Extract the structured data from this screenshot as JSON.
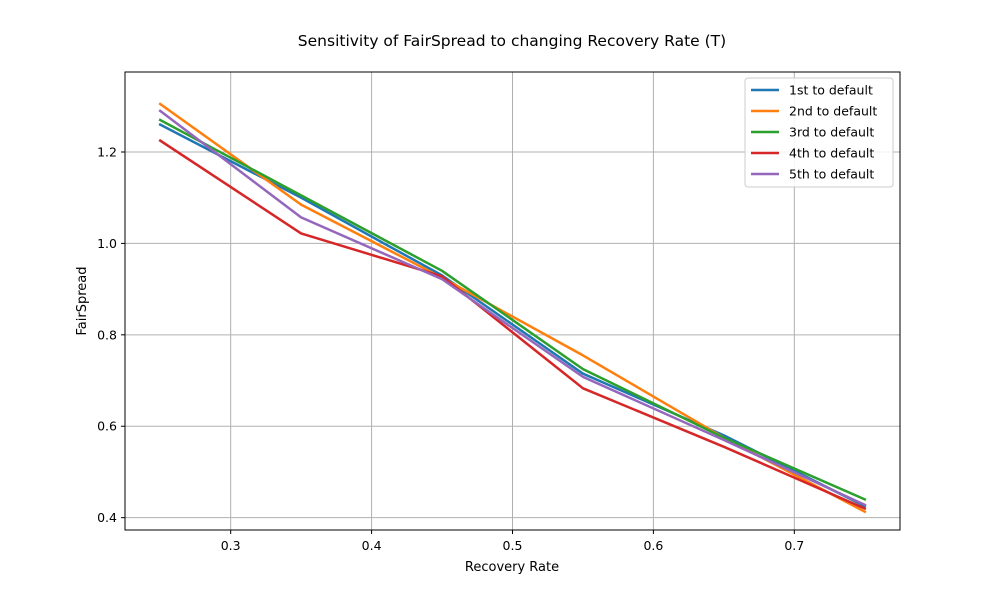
{
  "chart_data": {
    "type": "line",
    "title": "Sensitivity of FairSpread to changing Recovery Rate (T)",
    "xlabel": "Recovery Rate",
    "ylabel": "FairSpread",
    "xlim": [
      0.225,
      0.775
    ],
    "ylim": [
      0.373,
      1.375
    ],
    "xticks": [
      0.3,
      0.4,
      0.5,
      0.6,
      0.7
    ],
    "xtick_labels": [
      "0.3",
      "0.4",
      "0.5",
      "0.6",
      "0.7"
    ],
    "yticks": [
      0.4,
      0.6,
      0.8,
      1.0,
      1.2
    ],
    "ytick_labels": [
      "0.4",
      "0.6",
      "0.8",
      "1.0",
      "1.2"
    ],
    "grid": true,
    "legend_position": "top-right",
    "x": [
      0.25,
      0.35,
      0.45,
      0.55,
      0.65,
      0.75
    ],
    "series": [
      {
        "name": "1st to default",
        "color": "#1f77b4",
        "values": [
          1.26,
          1.1,
          0.93,
          0.715,
          0.58,
          0.425
        ]
      },
      {
        "name": "2nd to default",
        "color": "#ff7f0e",
        "values": [
          1.305,
          1.085,
          0.925,
          0.755,
          0.575,
          0.413
        ]
      },
      {
        "name": "3rd to default",
        "color": "#2ca02c",
        "values": [
          1.27,
          1.105,
          0.94,
          0.725,
          0.575,
          0.44
        ]
      },
      {
        "name": "4th to default",
        "color": "#d62728",
        "values": [
          1.225,
          1.022,
          0.928,
          0.683,
          0.555,
          0.42
        ]
      },
      {
        "name": "5th to default",
        "color": "#9467bd",
        "values": [
          1.29,
          1.057,
          0.922,
          0.708,
          0.57,
          0.428
        ]
      }
    ]
  }
}
